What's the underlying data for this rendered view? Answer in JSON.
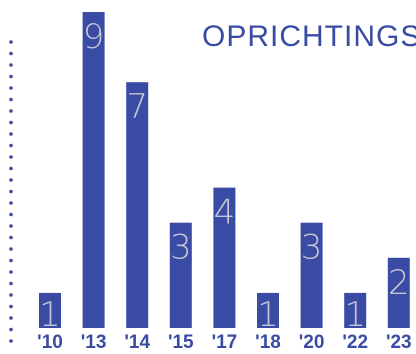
{
  "chart_data": {
    "type": "bar",
    "title": "OPRICHTINGSJAAR",
    "categories": [
      "'10",
      "'13",
      "'14",
      "'15",
      "'17",
      "'18",
      "'20",
      "'22",
      "'23"
    ],
    "values": [
      1,
      9,
      7,
      3,
      4,
      1,
      3,
      1,
      2
    ],
    "bar_color": "#3a4ba3",
    "label_color": "#c7c6d6",
    "ylim": [
      0,
      9
    ]
  }
}
